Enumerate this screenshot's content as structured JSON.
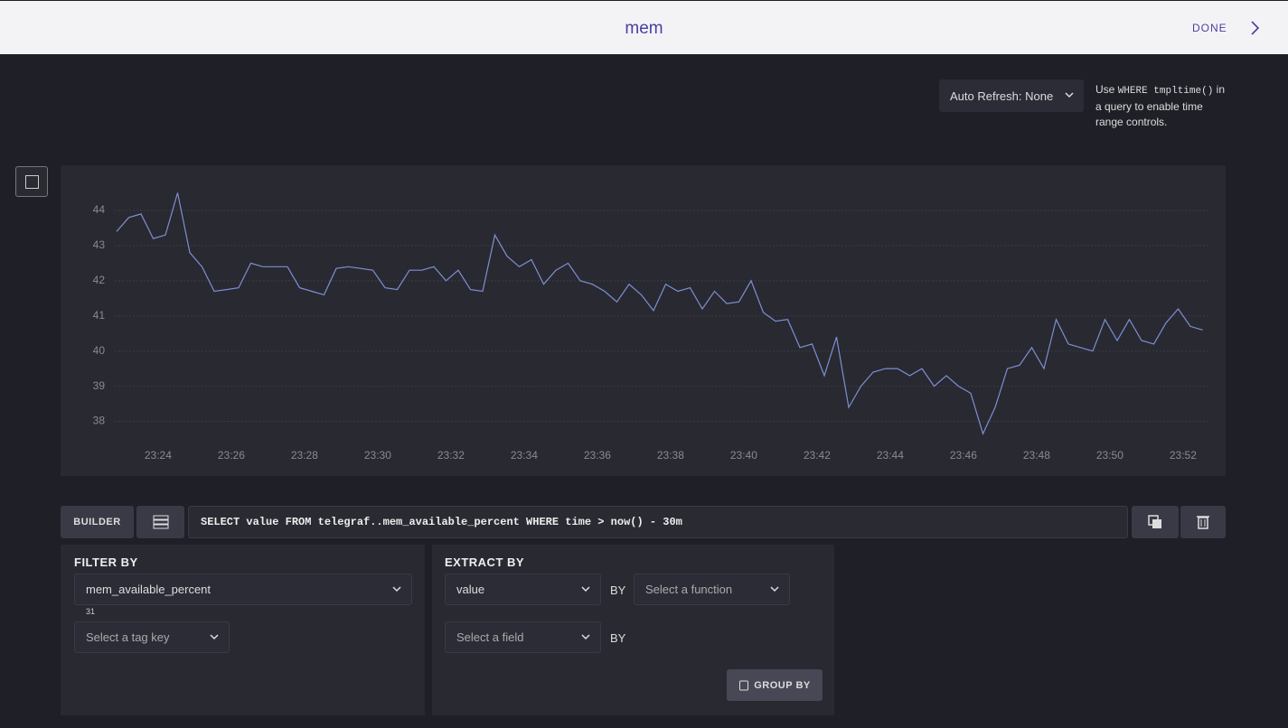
{
  "header": {
    "title": "mem",
    "done": "DONE"
  },
  "controls": {
    "auto_refresh": "Auto Refresh: None",
    "note_prefix": "Use",
    "note_code": "WHERE tmpltime()",
    "note_suffix": "in a query to enable time range controls."
  },
  "chart_data": {
    "type": "line",
    "values": [
      43.4,
      43.8,
      43.9,
      43.2,
      43.3,
      44.5,
      42.8,
      42.4,
      41.7,
      41.75,
      41.8,
      42.5,
      42.4,
      42.4,
      42.4,
      41.8,
      41.7,
      41.6,
      42.35,
      42.4,
      42.35,
      42.3,
      41.8,
      41.75,
      42.3,
      42.3,
      42.4,
      42.0,
      42.3,
      41.75,
      41.7,
      43.3,
      42.7,
      42.4,
      42.6,
      41.9,
      42.3,
      42.5,
      42.0,
      41.9,
      41.7,
      41.4,
      41.9,
      41.6,
      41.15,
      41.9,
      41.7,
      41.8,
      41.2,
      41.7,
      41.35,
      41.4,
      42.0,
      41.1,
      40.85,
      40.9,
      40.1,
      40.2,
      39.3,
      40.4,
      38.4,
      39.0,
      39.4,
      39.5,
      39.5,
      39.3,
      39.5,
      39.0,
      39.3,
      39.0,
      38.8,
      37.65,
      38.4,
      39.5,
      39.6,
      40.1,
      39.5,
      40.9,
      40.2,
      40.1,
      40.0,
      40.9,
      40.3,
      40.9,
      40.3,
      40.2,
      40.8,
      41.2,
      40.7,
      40.6
    ],
    "color": "#7d8fd1",
    "xlim": [
      0,
      89
    ],
    "xticks": [
      {
        "value": 3.4,
        "label": "23:24"
      },
      {
        "value": 9.4,
        "label": "23:26"
      },
      {
        "value": 15.4,
        "label": "23:28"
      },
      {
        "value": 21.4,
        "label": "23:30"
      },
      {
        "value": 27.4,
        "label": "23:32"
      },
      {
        "value": 33.4,
        "label": "23:34"
      },
      {
        "value": 39.4,
        "label": "23:36"
      },
      {
        "value": 45.4,
        "label": "23:38"
      },
      {
        "value": 51.4,
        "label": "23:40"
      },
      {
        "value": 57.4,
        "label": "23:42"
      },
      {
        "value": 63.4,
        "label": "23:44"
      },
      {
        "value": 69.4,
        "label": "23:46"
      },
      {
        "value": 75.4,
        "label": "23:48"
      },
      {
        "value": 81.4,
        "label": "23:50"
      },
      {
        "value": 87.4,
        "label": "23:52"
      }
    ],
    "ylim": [
      37.5,
      44.95
    ],
    "yticks": [
      38,
      39,
      40,
      41,
      42,
      43,
      44
    ],
    "grid": true
  },
  "query": {
    "builder": "BUILDER",
    "text": "SELECT value FROM telegraf..mem_available_percent WHERE time > now() - 30m"
  },
  "filter": {
    "title": "FILTER BY",
    "measurement": "mem_available_percent",
    "count": "31",
    "tag_key": "Select a tag key"
  },
  "extract": {
    "title": "EXTRACT BY",
    "field": "value",
    "by1": "BY",
    "function": "Select a function",
    "field2": "Select a field",
    "by2": "BY",
    "group_by": "GROUP BY"
  }
}
